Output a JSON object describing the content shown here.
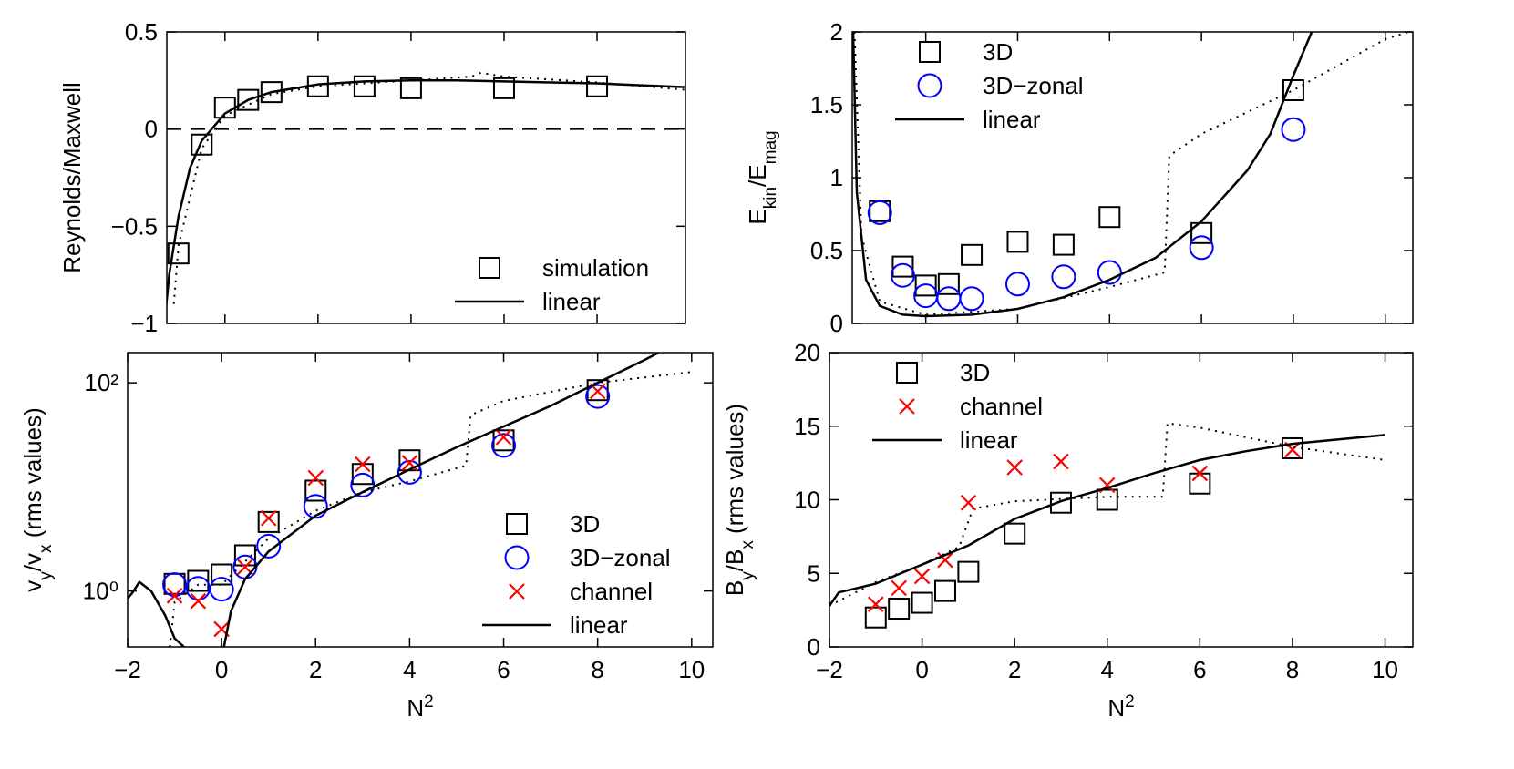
{
  "chart_data": [
    {
      "type": "line",
      "ylabel": [
        {
          "text": "Reynolds/Maxwell"
        }
      ],
      "xlim": [
        -1.25,
        9.9
      ],
      "xticks": [
        0,
        2,
        4,
        6,
        8
      ],
      "show_xtick_labels": false,
      "ylim": [
        -1,
        0.5
      ],
      "yticks": [
        {
          "value": -1,
          "label": "−1"
        },
        {
          "value": -0.5,
          "label": "−0.5"
        },
        0,
        0.5
      ],
      "hline": 0,
      "hline_style": "dashed",
      "legend": "lower right",
      "series": [
        {
          "name": "simulation",
          "marker": "square",
          "color": "#000000",
          "x": [
            -1,
            -0.5,
            0,
            0.5,
            1,
            2,
            3,
            4,
            6,
            8
          ],
          "values": [
            -0.64,
            -0.08,
            0.11,
            0.15,
            0.19,
            0.22,
            0.22,
            0.21,
            0.21,
            0.22
          ]
        },
        {
          "name": "linear",
          "linestyle": "solid",
          "color": "#000000",
          "x": [
            -1.3,
            -1.2,
            -1,
            -0.75,
            -0.5,
            0,
            0.5,
            1,
            2,
            3,
            4,
            5,
            6,
            7,
            8,
            9,
            10
          ],
          "values": [
            -1,
            -0.75,
            -0.45,
            -0.2,
            -0.06,
            0.08,
            0.15,
            0.19,
            0.23,
            0.245,
            0.25,
            0.25,
            0.245,
            0.24,
            0.235,
            0.225,
            0.215
          ]
        },
        {
          "linestyle": "dotted",
          "color": "#000000",
          "x": [
            -1.1,
            -1,
            -0.5,
            0,
            1,
            2,
            4,
            5.3,
            5.5,
            6,
            8,
            10
          ],
          "values": [
            -0.9,
            -0.6,
            -0.1,
            0.07,
            0.18,
            0.22,
            0.25,
            0.27,
            0.29,
            0.27,
            0.24,
            0.2
          ]
        }
      ]
    },
    {
      "type": "line",
      "ylabel": [
        {
          "text": "E"
        },
        {
          "text": "kin",
          "sub": true
        },
        {
          "text": "/E"
        },
        {
          "text": "mag",
          "sub": true
        }
      ],
      "xlim": [
        -1.6,
        10.6
      ],
      "xticks": [
        0,
        2,
        4,
        6,
        8,
        10
      ],
      "show_xtick_labels": false,
      "ylim": [
        0,
        2
      ],
      "yticks": [
        0,
        0.5,
        1,
        1.5,
        2
      ],
      "legend": "upper left",
      "series": [
        {
          "name": "3D",
          "marker": "square",
          "color": "#000000",
          "x": [
            -1,
            -0.5,
            0,
            0.5,
            1,
            2,
            3,
            4,
            6,
            8
          ],
          "values": [
            0.77,
            0.39,
            0.26,
            0.27,
            0.47,
            0.56,
            0.54,
            0.73,
            0.62,
            1.6
          ]
        },
        {
          "name": "3D−zonal",
          "marker": "circle",
          "color": "#0000ff",
          "x": [
            -1,
            -0.5,
            0,
            0.5,
            1,
            2,
            3,
            4,
            6,
            8
          ],
          "values": [
            0.76,
            0.33,
            0.19,
            0.17,
            0.17,
            0.27,
            0.32,
            0.35,
            0.52,
            1.33
          ]
        },
        {
          "name": "linear",
          "linestyle": "solid",
          "color": "#000000",
          "x": [
            -1.58,
            -1.5,
            -1.3,
            -1,
            -0.5,
            0,
            1,
            2,
            3,
            4,
            5,
            6,
            7,
            7.5,
            8,
            8.4
          ],
          "values": [
            2,
            0.9,
            0.3,
            0.12,
            0.06,
            0.05,
            0.06,
            0.1,
            0.18,
            0.3,
            0.45,
            0.7,
            1.05,
            1.3,
            1.7,
            2
          ]
        },
        {
          "linestyle": "dotted",
          "color": "#000000",
          "x": [
            -1.55,
            -1.4,
            -1,
            0,
            2,
            4,
            5.2,
            5.3,
            6,
            8,
            10,
            10.5
          ],
          "values": [
            2,
            0.6,
            0.15,
            0.06,
            0.1,
            0.25,
            0.35,
            1.15,
            1.3,
            1.6,
            1.95,
            2
          ]
        }
      ]
    },
    {
      "type": "line",
      "ylabel": [
        {
          "text": "v"
        },
        {
          "text": "y",
          "sub": true
        },
        {
          "text": "/v"
        },
        {
          "text": "x",
          "sub": true
        },
        {
          "text": " (rms values)"
        }
      ],
      "xlabel": [
        {
          "text": "N"
        },
        {
          "text": "2",
          "sup": true
        }
      ],
      "xlim": [
        -2,
        10.45
      ],
      "xticks": [
        {
          "value": -2,
          "label": "−2"
        },
        0,
        2,
        4,
        6,
        8,
        10
      ],
      "ylim": [
        0.29,
        195
      ],
      "log_y": true,
      "yticks": [
        {
          "value": 1,
          "label": "10⁰"
        },
        {
          "value": 100,
          "label": "10²"
        }
      ],
      "legend": "lower right",
      "series": [
        {
          "name": "3D",
          "marker": "square",
          "color": "#000000",
          "x": [
            -1,
            -0.5,
            0,
            0.5,
            1,
            2,
            3,
            4,
            6,
            8
          ],
          "values": [
            1.17,
            1.25,
            1.44,
            2.2,
            4.6,
            9.2,
            13.3,
            18,
            28,
            85
          ]
        },
        {
          "name": "3D−zonal",
          "marker": "circle",
          "color": "#0000ff",
          "x": [
            -1,
            -0.5,
            0,
            0.5,
            1,
            2,
            3,
            4,
            6,
            8
          ],
          "values": [
            1.15,
            1.06,
            1.04,
            1.7,
            2.7,
            6.5,
            10.4,
            13.8,
            25,
            74
          ]
        },
        {
          "name": "channel",
          "marker": "x",
          "color": "#ff0000",
          "x": [
            -1,
            -0.5,
            0,
            0.5,
            1,
            2,
            3,
            4,
            6,
            8
          ],
          "values": [
            0.9,
            0.8,
            0.43,
            1.7,
            5,
            12.2,
            16.5,
            17,
            30,
            83
          ]
        },
        {
          "name": "linear",
          "linestyle": "solid",
          "color": "#000000",
          "x": [
            -2,
            -1.9,
            -1.75,
            -1.5,
            -1.2,
            -1,
            -0.8,
            null,
            0.05,
            0.2,
            0.5,
            1,
            2,
            3,
            4,
            5,
            6,
            7,
            8,
            9,
            9.3
          ],
          "values": [
            0.85,
            0.96,
            1.22,
            1,
            0.58,
            0.35,
            0.29,
            null,
            0.29,
            0.64,
            1.3,
            2.4,
            5.3,
            8.9,
            14.7,
            24,
            38,
            60,
            100,
            166,
            195
          ]
        },
        {
          "linestyle": "dotted",
          "color": "#000000",
          "x": [
            -1.1,
            -1,
            -0.5,
            0,
            1,
            2,
            3,
            4,
            5.2,
            5.3,
            6,
            8,
            10
          ],
          "values": [
            0.29,
            0.78,
            1.15,
            1.15,
            3.2,
            5.9,
            8.9,
            11.3,
            16,
            49,
            67,
            100,
            127
          ]
        }
      ]
    },
    {
      "type": "line",
      "ylabel": [
        {
          "text": "B"
        },
        {
          "text": "y",
          "sub": true
        },
        {
          "text": "/B"
        },
        {
          "text": "x",
          "sub": true
        },
        {
          "text": " (rms values)"
        }
      ],
      "xlabel": [
        {
          "text": "N"
        },
        {
          "text": "2",
          "sup": true
        }
      ],
      "xlim": [
        -2,
        10.6
      ],
      "xticks": [
        {
          "value": -2,
          "label": "−2"
        },
        0,
        2,
        4,
        6,
        8,
        10
      ],
      "ylim": [
        0,
        20
      ],
      "yticks": [
        0,
        5,
        10,
        15,
        20
      ],
      "legend": "upper left",
      "series": [
        {
          "name": "3D",
          "marker": "square",
          "color": "#000000",
          "x": [
            -1,
            -0.5,
            0,
            0.5,
            1,
            2,
            3,
            4,
            6,
            8
          ],
          "values": [
            2.0,
            2.6,
            3.0,
            3.8,
            5.1,
            7.7,
            9.8,
            10,
            11.1,
            13.5
          ]
        },
        {
          "name": "channel",
          "marker": "x",
          "color": "#ff0000",
          "x": [
            -1,
            -0.5,
            0,
            0.5,
            1,
            2,
            3,
            4,
            6,
            8
          ],
          "values": [
            2.9,
            4,
            4.8,
            5.9,
            9.8,
            12.2,
            12.6,
            11,
            11.8,
            13.4
          ]
        },
        {
          "name": "linear",
          "linestyle": "solid",
          "color": "#000000",
          "x": [
            -2,
            -1.8,
            -1,
            0,
            1,
            2,
            3,
            4,
            5,
            6,
            7,
            8,
            9,
            10
          ],
          "values": [
            2.8,
            3.7,
            4.3,
            5.6,
            6.9,
            8.7,
            9.9,
            10.8,
            11.8,
            12.7,
            13.3,
            13.8,
            14.1,
            14.4
          ]
        },
        {
          "linestyle": "dotted",
          "color": "#000000",
          "x": [
            -2,
            -1,
            0,
            0.8,
            1.1,
            2,
            4,
            5.2,
            5.3,
            6,
            8,
            10
          ],
          "values": [
            2.8,
            4.4,
            5.6,
            6.8,
            9.4,
            9.9,
            10.2,
            10.2,
            15.2,
            14.9,
            13.6,
            12.7
          ]
        }
      ]
    }
  ]
}
